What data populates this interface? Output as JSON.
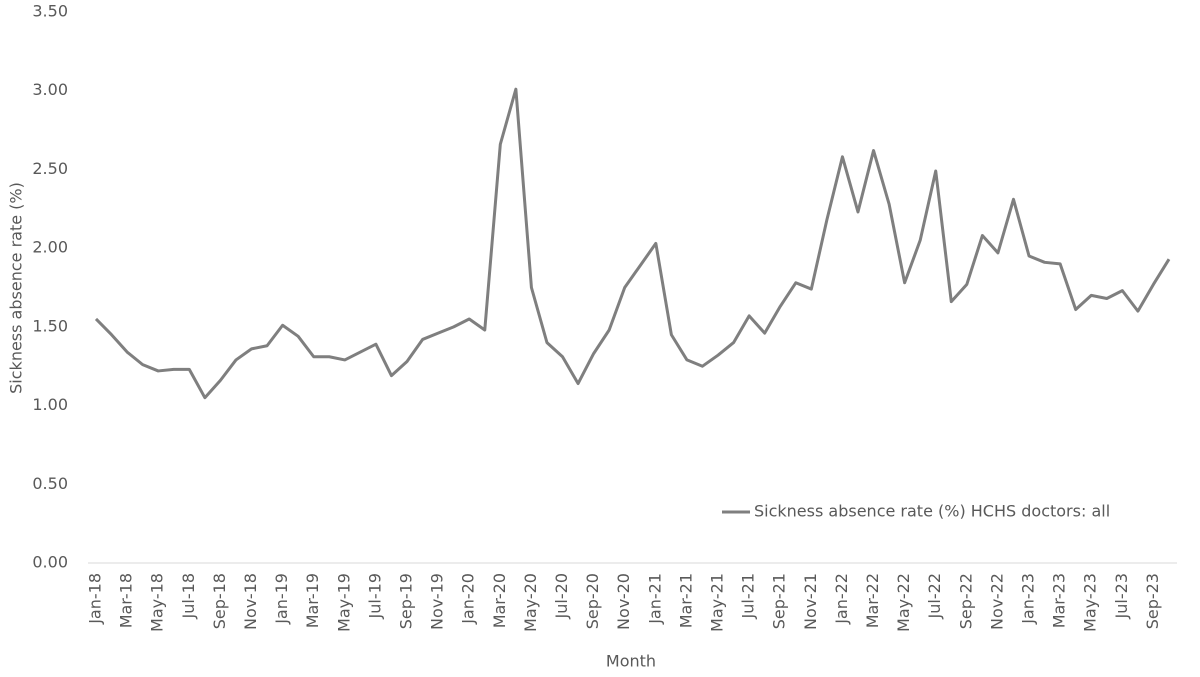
{
  "chart_data": {
    "type": "line",
    "x_label": "Month",
    "y_label": "Sickness absence rate (%)",
    "categories": [
      "Jan-18",
      null,
      "Mar-18",
      null,
      "May-18",
      null,
      "Jul-18",
      null,
      "Sep-18",
      null,
      "Nov-18",
      null,
      "Jan-19",
      null,
      "Mar-19",
      null,
      "May-19",
      null,
      "Jul-19",
      null,
      "Sep-19",
      null,
      "Nov-19",
      null,
      "Jan-20",
      null,
      "Mar-20",
      null,
      "May-20",
      null,
      "Jul-20",
      null,
      "Sep-20",
      null,
      "Nov-20",
      null,
      "Jan-21",
      null,
      "Mar-21",
      null,
      "May-21",
      null,
      "Jul-21",
      null,
      "Sep-21",
      null,
      "Nov-21",
      null,
      "Jan-22",
      null,
      "Mar-22",
      null,
      "May-22",
      null,
      "Jul-22",
      null,
      "Sep-22",
      null,
      "Nov-22",
      null,
      "Jan-23",
      null,
      "Mar-23",
      null,
      "May-23",
      null,
      "Jul-23",
      null,
      "Sep-23",
      null
    ],
    "series": [
      {
        "name": "Sickness absence rate (%) HCHS doctors: all",
        "color": "#7f7f7f",
        "values": [
          1.55,
          1.45,
          1.34,
          1.26,
          1.22,
          1.23,
          1.23,
          1.05,
          1.16,
          1.29,
          1.36,
          1.38,
          1.51,
          1.44,
          1.31,
          1.31,
          1.29,
          1.34,
          1.39,
          1.19,
          1.28,
          1.42,
          1.46,
          1.5,
          1.55,
          1.48,
          2.66,
          3.01,
          1.75,
          1.4,
          1.31,
          1.14,
          1.33,
          1.48,
          1.75,
          1.89,
          2.03,
          1.45,
          1.29,
          1.25,
          1.32,
          1.4,
          1.57,
          1.46,
          1.63,
          1.78,
          1.74,
          2.18,
          2.58,
          2.23,
          2.62,
          2.28,
          1.78,
          2.05,
          2.49,
          1.66,
          1.77,
          2.08,
          1.97,
          2.31,
          1.95,
          1.91,
          1.9,
          1.61,
          1.7,
          1.68,
          1.73,
          1.6,
          1.77,
          1.93
        ]
      }
    ],
    "ylim": [
      0,
      3.5
    ],
    "yticks": [
      {
        "value": 0,
        "label": "0.00"
      },
      {
        "value": 0.5,
        "label": "0.50"
      },
      {
        "value": 1,
        "label": "1.00"
      },
      {
        "value": 1.5,
        "label": "1.50"
      },
      {
        "value": 2,
        "label": "2.00"
      },
      {
        "value": 2.5,
        "label": "2.50"
      },
      {
        "value": 3,
        "label": "3.00"
      },
      {
        "value": 3.5,
        "label": "3.50"
      }
    ],
    "grid": false,
    "legend": "lower right"
  }
}
